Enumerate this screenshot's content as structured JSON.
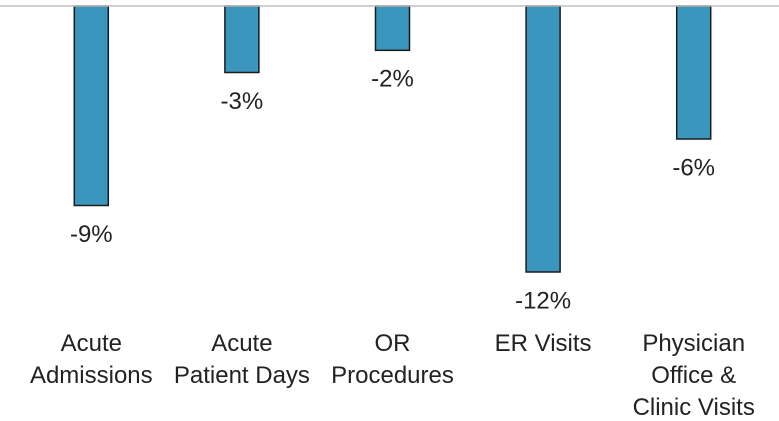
{
  "chart_data": {
    "type": "bar",
    "categories": [
      "Acute\nAdmissions",
      "Acute\nPatient Days",
      "OR\nProcedures",
      "ER Visits",
      "Physician\nOffice &\nClinic Visits"
    ],
    "values": [
      -9,
      -3,
      -2,
      -12,
      -6
    ],
    "value_labels": [
      "-9%",
      "-3%",
      "-2%",
      "-12%",
      "-6%"
    ],
    "color": "#3a96bd",
    "ylim": [
      -12,
      0
    ]
  }
}
